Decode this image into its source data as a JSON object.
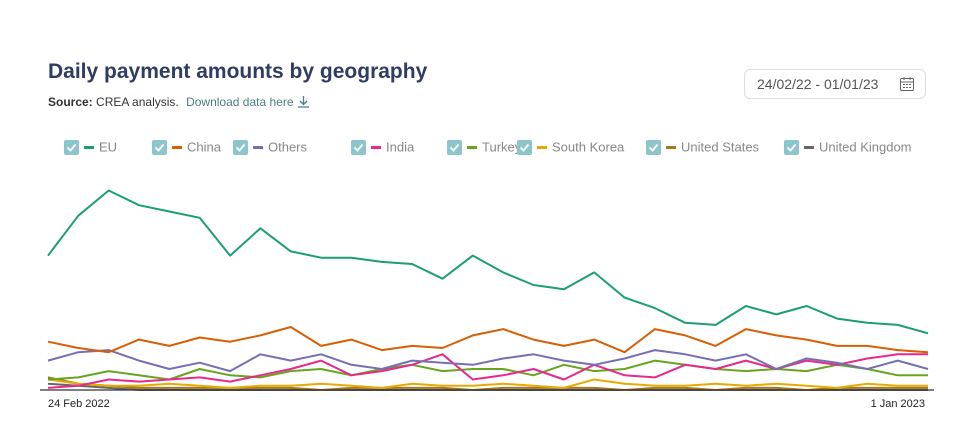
{
  "header": {
    "title": "Daily payment amounts by geography",
    "source_label": "Source:",
    "source_text": "CREA analysis.",
    "download_label": "Download data here",
    "date_range": "24/02/22 - 01/01/23"
  },
  "chart_data": {
    "type": "line",
    "x_start_label": "24 Feb 2022",
    "x_end_label": "1 Jan 2023",
    "ylim": [
      0,
      100
    ],
    "series": [
      {
        "name": "EU",
        "color": "#1b9e77",
        "values": [
          64,
          83,
          95,
          88,
          85,
          82,
          64,
          77,
          66,
          63,
          63,
          61,
          60,
          53,
          64,
          56,
          50,
          48,
          56,
          44,
          39,
          32,
          31,
          40,
          36,
          40,
          34,
          32,
          31,
          27
        ]
      },
      {
        "name": "China",
        "color": "#d95f02",
        "values": [
          23,
          20,
          18,
          24,
          21,
          25,
          23,
          26,
          30,
          21,
          24,
          19,
          21,
          20,
          26,
          29,
          24,
          21,
          24,
          18,
          29,
          26,
          21,
          29,
          26,
          24,
          21,
          21,
          19,
          18
        ]
      },
      {
        "name": "Others",
        "color": "#7570b3",
        "values": [
          14,
          18,
          19,
          14,
          10,
          13,
          9,
          17,
          14,
          17,
          12,
          10,
          14,
          13,
          12,
          15,
          17,
          14,
          12,
          15,
          19,
          17,
          14,
          17,
          10,
          15,
          13,
          10,
          14,
          10
        ]
      },
      {
        "name": "India",
        "color": "#e7298a",
        "values": [
          1,
          2,
          5,
          4,
          5,
          6,
          4,
          7,
          10,
          14,
          7,
          9,
          12,
          17,
          5,
          7,
          10,
          5,
          12,
          7,
          6,
          12,
          10,
          14,
          10,
          14,
          12,
          15,
          17,
          17
        ]
      },
      {
        "name": "Turkey",
        "color": "#66a61e",
        "values": [
          5,
          6,
          9,
          7,
          5,
          10,
          7,
          6,
          9,
          10,
          7,
          10,
          12,
          9,
          10,
          10,
          7,
          12,
          9,
          10,
          14,
          12,
          10,
          9,
          10,
          9,
          12,
          10,
          7,
          7
        ]
      },
      {
        "name": "South Korea",
        "color": "#e6ab02",
        "values": [
          5,
          3,
          2,
          2,
          3,
          2,
          1,
          2,
          2,
          3,
          2,
          1,
          3,
          2,
          2,
          3,
          2,
          1,
          5,
          3,
          2,
          2,
          3,
          2,
          3,
          2,
          1,
          3,
          2,
          2
        ]
      },
      {
        "name": "United States",
        "color": "#a6761d",
        "values": [
          6,
          3,
          2,
          1,
          1,
          1,
          1,
          1,
          1,
          0,
          1,
          1,
          1,
          1,
          0,
          1,
          1,
          1,
          1,
          0,
          1,
          1,
          0,
          1,
          1,
          0,
          1,
          1,
          1,
          1
        ]
      },
      {
        "name": "United Kingdom",
        "color": "#666666",
        "values": [
          3,
          2,
          1,
          0,
          0,
          0,
          0,
          0,
          0,
          0,
          0,
          0,
          0,
          0,
          0,
          0,
          0,
          0,
          0,
          0,
          0,
          0,
          0,
          0,
          0,
          0,
          0,
          0,
          0,
          0
        ]
      }
    ]
  }
}
